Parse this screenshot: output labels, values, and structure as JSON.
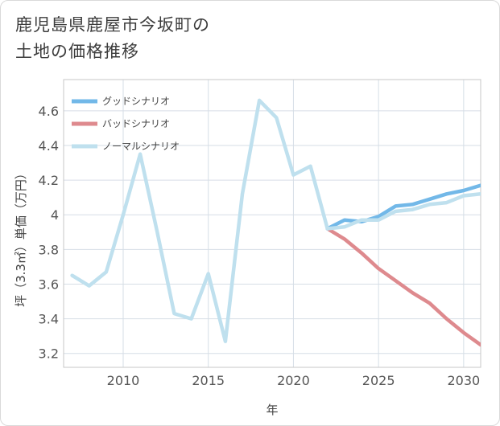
{
  "title": {
    "line1": "鹿児島県鹿屋市今坂町の",
    "line2": "土地の価格推移"
  },
  "chart_data": {
    "type": "line",
    "xlabel": "年",
    "ylabel": "坪（3.3㎡）単価（万円）",
    "xlim": [
      2006.5,
      2031
    ],
    "ylim": [
      3.12,
      4.78
    ],
    "x_ticks": [
      2010,
      2015,
      2020,
      2025,
      2030
    ],
    "y_ticks": [
      3.2,
      3.4,
      3.6,
      3.8,
      4,
      4.2,
      4.4,
      4.6
    ],
    "y_tick_labels": [
      "3.2",
      "3.4",
      "3.6",
      "3.8",
      "4",
      "4.2",
      "4.4",
      "4.6"
    ],
    "grid": true,
    "legend_position": "top-left",
    "series": [
      {
        "name": "グッドシナリオ",
        "color": "#72b8e8",
        "x": [
          2022,
          2023,
          2024,
          2025,
          2026,
          2027,
          2028,
          2029,
          2030,
          2031
        ],
        "values": [
          3.92,
          3.97,
          3.96,
          3.99,
          4.05,
          4.06,
          4.09,
          4.12,
          4.14,
          4.17
        ]
      },
      {
        "name": "バッドシナリオ",
        "color": "#de8a8e",
        "x": [
          2022,
          2023,
          2024,
          2025,
          2026,
          2027,
          2028,
          2029,
          2030,
          2031
        ],
        "values": [
          3.92,
          3.86,
          3.78,
          3.69,
          3.62,
          3.55,
          3.49,
          3.4,
          3.32,
          3.25
        ]
      },
      {
        "name": "ノーマルシナリオ",
        "color": "#bfe0ee",
        "x": [
          2007,
          2008,
          2009,
          2010,
          2011,
          2012,
          2013,
          2014,
          2015,
          2016,
          2017,
          2018,
          2019,
          2020,
          2021,
          2022,
          2023,
          2024,
          2025,
          2026,
          2027,
          2028,
          2029,
          2030,
          2031
        ],
        "values": [
          3.65,
          3.59,
          3.67,
          4.0,
          4.35,
          3.9,
          3.43,
          3.4,
          3.66,
          3.27,
          4.12,
          4.66,
          4.56,
          4.23,
          4.28,
          3.92,
          3.93,
          3.97,
          3.97,
          4.02,
          4.03,
          4.06,
          4.07,
          4.11,
          4.12
        ]
      }
    ]
  }
}
